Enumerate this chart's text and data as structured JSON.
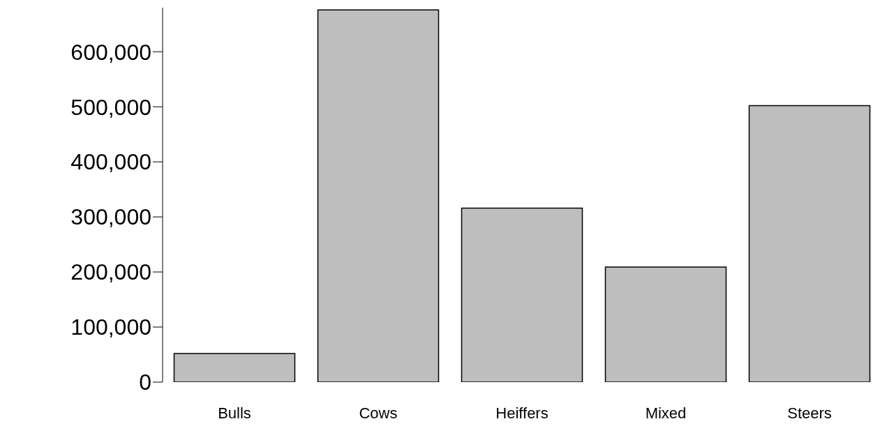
{
  "chart_data": {
    "type": "bar",
    "categories": [
      "Bulls",
      "Cows",
      "Heiffers",
      "Mixed",
      "Steers"
    ],
    "values": [
      52000,
      676000,
      316000,
      209000,
      502000
    ],
    "color": "#bebebe",
    "ylim": [
      0,
      680000
    ],
    "yticks": [
      {
        "value": 0,
        "label": "0"
      },
      {
        "value": 100000,
        "label": "100,000"
      },
      {
        "value": 200000,
        "label": "200,000"
      },
      {
        "value": 300000,
        "label": "300,000"
      },
      {
        "value": 400000,
        "label": "400,000"
      },
      {
        "value": 500000,
        "label": "500,000"
      },
      {
        "value": 600000,
        "label": "600,000"
      }
    ],
    "grid": false
  }
}
